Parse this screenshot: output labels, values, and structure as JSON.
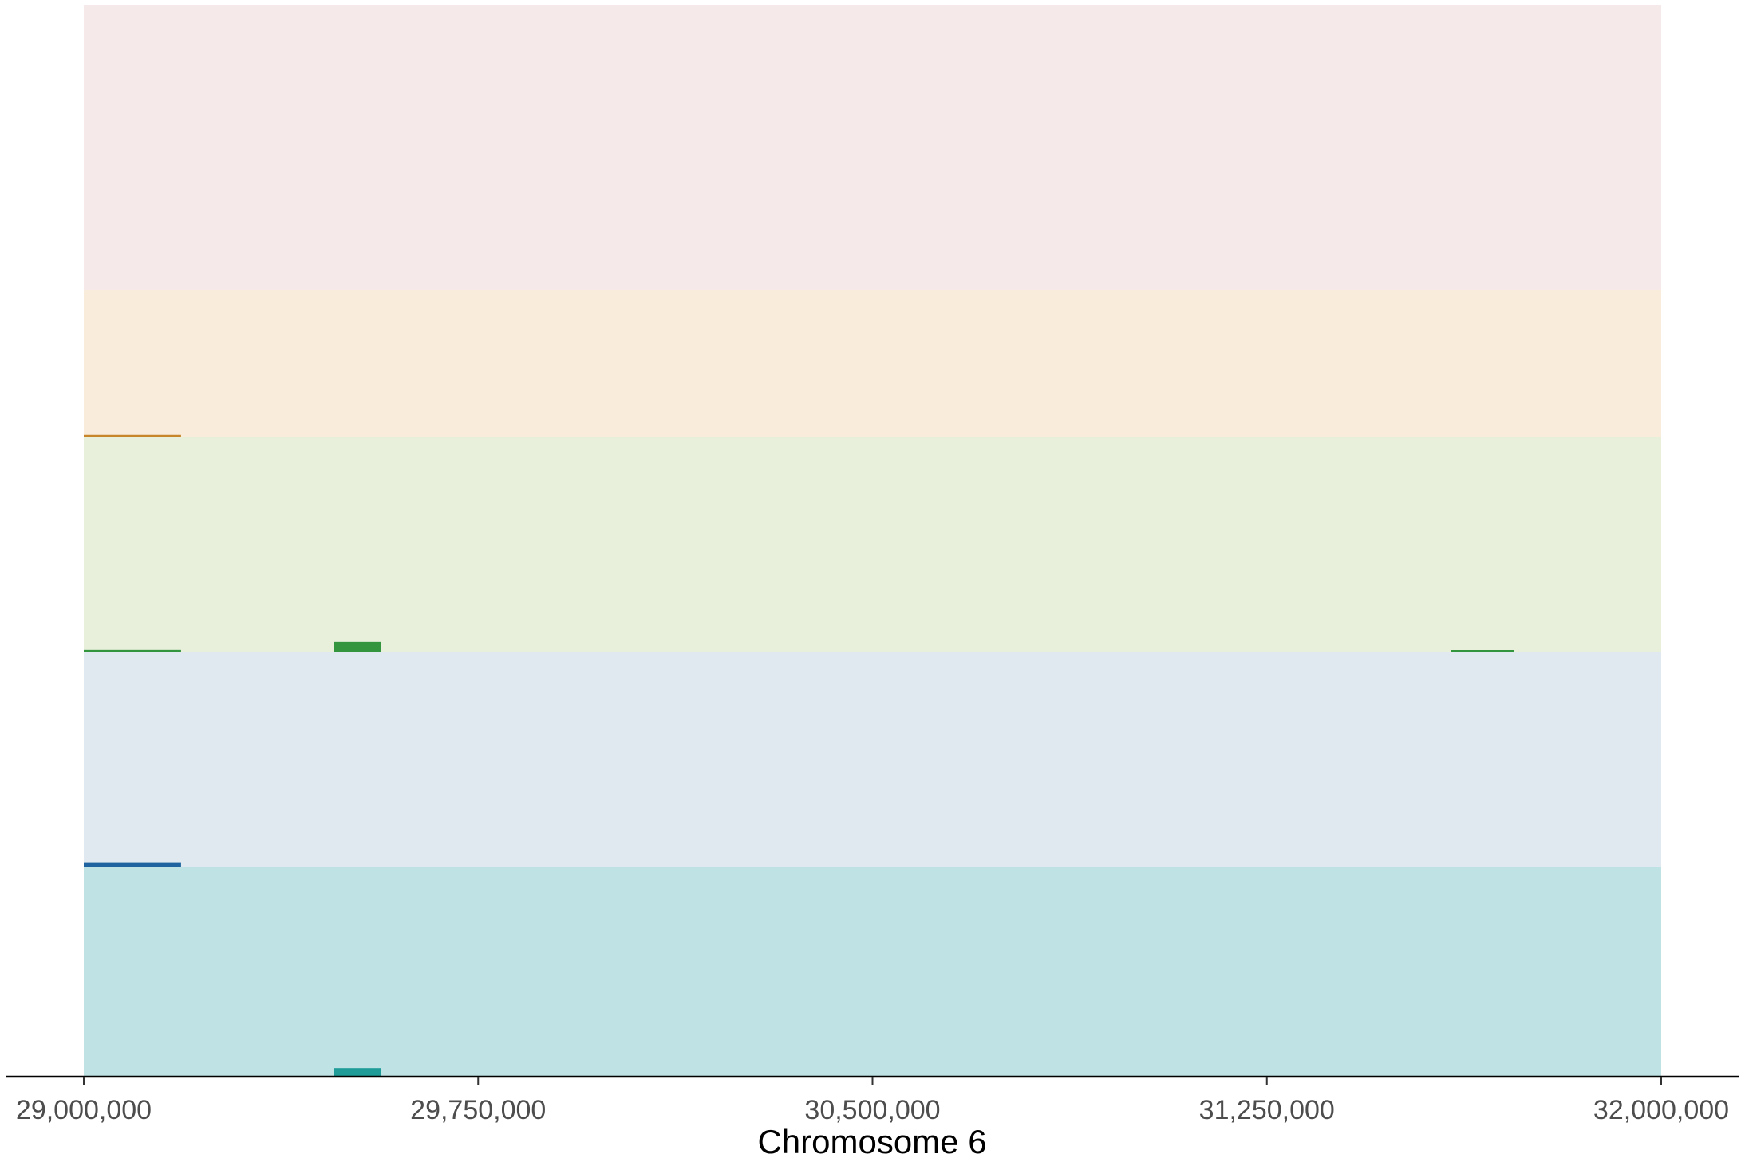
{
  "chart_data": {
    "type": "bar",
    "title": "",
    "xlabel": "Chromosome 6",
    "ylabel": "",
    "xlim": [
      29000000,
      32000000
    ],
    "x_ticks": [
      29000000,
      29750000,
      30500000,
      31250000,
      32000000
    ],
    "x_tick_labels": [
      "29,000,000",
      "29,750,000",
      "30,500,000",
      "31,250,000",
      "32,000,000"
    ],
    "grid": false,
    "legend": "none",
    "bands": [
      {
        "fill": "#f5e9e9",
        "segments": []
      },
      {
        "fill": "#f9ecda",
        "bar_color": "#c8862a",
        "segments": [
          {
            "start": 29000000,
            "end": 29185000,
            "height": 0.012
          }
        ]
      },
      {
        "fill": "#e8f0dc",
        "bar_color": "#33963f",
        "segments": [
          {
            "start": 29000000,
            "end": 29185000,
            "height": 0.008
          },
          {
            "start": 29475000,
            "end": 29565000,
            "height": 0.045
          },
          {
            "start": 31600000,
            "end": 31720000,
            "height": 0.006
          }
        ]
      },
      {
        "fill": "#dfe9ef",
        "bar_color": "#1f64a0",
        "segments": [
          {
            "start": 29000000,
            "end": 29185000,
            "height": 0.02
          }
        ]
      },
      {
        "fill": "#bfe2e4",
        "bar_color": "#1f9c98",
        "segments": [
          {
            "start": 29475000,
            "end": 29565000,
            "height": 0.04
          }
        ]
      }
    ]
  }
}
